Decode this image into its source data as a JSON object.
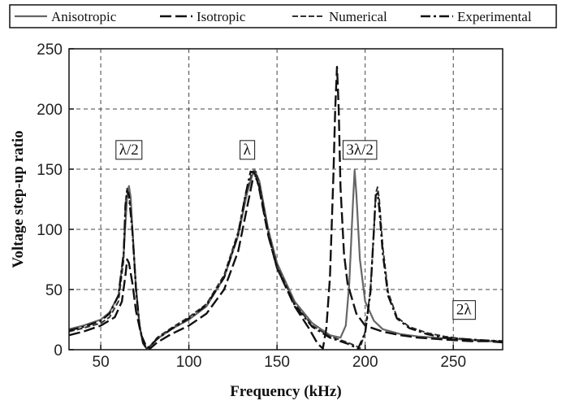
{
  "chart_data": {
    "type": "line",
    "xlabel": "Frequency (kHz)",
    "ylabel": "Voltage step-up ratio",
    "xlim": [
      32,
      278
    ],
    "ylim": [
      0,
      250
    ],
    "xticks": [
      50,
      100,
      150,
      200,
      250
    ],
    "yticks": [
      0,
      50,
      100,
      150,
      200,
      250
    ],
    "grid": true,
    "legend_position": "top",
    "annotations": [
      {
        "text": "λ/2",
        "x": 66,
        "y": 167
      },
      {
        "text": "λ",
        "x": 133,
        "y": 167
      },
      {
        "text": "3λ/2",
        "x": 197,
        "y": 167
      },
      {
        "text": "2λ",
        "x": 256,
        "y": 34
      }
    ],
    "series": [
      {
        "name": "Anisotropic",
        "style": "solid",
        "color": "#666666",
        "points": [
          [
            32,
            17
          ],
          [
            40,
            20
          ],
          [
            50,
            25
          ],
          [
            55,
            31
          ],
          [
            60,
            45
          ],
          [
            63,
            80
          ],
          [
            65,
            128
          ],
          [
            66,
            136
          ],
          [
            67,
            126
          ],
          [
            68,
            100
          ],
          [
            70,
            50
          ],
          [
            72,
            20
          ],
          [
            74,
            5
          ],
          [
            76,
            1
          ],
          [
            78,
            3
          ],
          [
            82,
            9
          ],
          [
            90,
            17
          ],
          [
            100,
            25
          ],
          [
            110,
            36
          ],
          [
            120,
            60
          ],
          [
            128,
            95
          ],
          [
            133,
            130
          ],
          [
            137,
            150
          ],
          [
            140,
            140
          ],
          [
            145,
            100
          ],
          [
            150,
            72
          ],
          [
            160,
            40
          ],
          [
            170,
            22
          ],
          [
            180,
            12
          ],
          [
            186,
            10
          ],
          [
            189,
            20
          ],
          [
            191,
            55
          ],
          [
            193,
            120
          ],
          [
            194,
            149
          ],
          [
            195,
            130
          ],
          [
            197,
            75
          ],
          [
            200,
            40
          ],
          [
            205,
            24
          ],
          [
            210,
            17
          ],
          [
            220,
            13
          ],
          [
            230,
            11
          ],
          [
            240,
            10
          ],
          [
            250,
            9
          ],
          [
            260,
            8
          ],
          [
            270,
            7
          ],
          [
            278,
            7
          ]
        ]
      },
      {
        "name": "Isotropic",
        "style": "longdash",
        "color": "#111111",
        "points": [
          [
            32,
            12
          ],
          [
            40,
            15
          ],
          [
            50,
            20
          ],
          [
            58,
            27
          ],
          [
            62,
            40
          ],
          [
            64,
            62
          ],
          [
            65,
            75
          ],
          [
            66,
            72
          ],
          [
            68,
            55
          ],
          [
            70,
            32
          ],
          [
            73,
            12
          ],
          [
            76,
            2
          ],
          [
            78,
            1
          ],
          [
            82,
            6
          ],
          [
            90,
            13
          ],
          [
            100,
            20
          ],
          [
            110,
            30
          ],
          [
            120,
            50
          ],
          [
            128,
            82
          ],
          [
            133,
            118
          ],
          [
            136,
            140
          ],
          [
            138,
            145
          ],
          [
            140,
            133
          ],
          [
            145,
            95
          ],
          [
            150,
            68
          ],
          [
            160,
            36
          ],
          [
            168,
            18
          ],
          [
            173,
            5
          ],
          [
            176,
            1
          ],
          [
            178,
            18
          ],
          [
            180,
            60
          ],
          [
            182,
            145
          ],
          [
            183,
            200
          ],
          [
            184,
            235
          ],
          [
            185,
            200
          ],
          [
            186,
            135
          ],
          [
            188,
            80
          ],
          [
            190,
            55
          ],
          [
            195,
            30
          ],
          [
            200,
            20
          ],
          [
            210,
            15
          ],
          [
            220,
            12
          ],
          [
            230,
            10
          ],
          [
            240,
            9
          ],
          [
            250,
            8
          ],
          [
            260,
            7
          ],
          [
            270,
            7
          ],
          [
            278,
            6
          ]
        ]
      },
      {
        "name": "Numerical",
        "style": "dash",
        "color": "#333333",
        "points": [
          [
            32,
            15
          ],
          [
            40,
            18
          ],
          [
            50,
            22
          ],
          [
            55,
            27
          ],
          [
            60,
            40
          ],
          [
            63,
            75
          ],
          [
            64,
            122
          ],
          [
            65,
            134
          ],
          [
            66,
            130
          ],
          [
            68,
            100
          ],
          [
            70,
            52
          ],
          [
            72,
            20
          ],
          [
            74,
            5
          ],
          [
            76,
            1
          ],
          [
            78,
            3
          ],
          [
            82,
            10
          ],
          [
            90,
            18
          ],
          [
            100,
            27
          ],
          [
            110,
            38
          ],
          [
            120,
            62
          ],
          [
            128,
            98
          ],
          [
            132,
            128
          ],
          [
            136,
            148
          ],
          [
            138,
            148
          ],
          [
            140,
            138
          ],
          [
            145,
            98
          ],
          [
            150,
            70
          ],
          [
            160,
            38
          ],
          [
            170,
            20
          ],
          [
            180,
            11
          ],
          [
            190,
            6
          ],
          [
            195,
            3
          ],
          [
            197,
            1
          ],
          [
            200,
            15
          ],
          [
            203,
            50
          ],
          [
            205,
            100
          ],
          [
            206,
            130
          ],
          [
            207,
            135
          ],
          [
            208,
            125
          ],
          [
            210,
            85
          ],
          [
            213,
            48
          ],
          [
            218,
            27
          ],
          [
            225,
            19
          ],
          [
            235,
            14
          ],
          [
            245,
            11
          ],
          [
            255,
            9
          ],
          [
            265,
            8
          ],
          [
            278,
            7
          ]
        ]
      },
      {
        "name": "Experimental",
        "style": "dashdot",
        "color": "#111111",
        "points": [
          [
            32,
            16
          ],
          [
            40,
            19
          ],
          [
            50,
            24
          ],
          [
            55,
            30
          ],
          [
            60,
            45
          ],
          [
            63,
            80
          ],
          [
            64,
            120
          ],
          [
            65,
            132
          ],
          [
            66,
            128
          ],
          [
            68,
            98
          ],
          [
            70,
            50
          ],
          [
            72,
            20
          ],
          [
            74,
            6
          ],
          [
            76,
            1
          ],
          [
            78,
            3
          ],
          [
            82,
            9
          ],
          [
            90,
            17
          ],
          [
            100,
            26
          ],
          [
            110,
            37
          ],
          [
            120,
            60
          ],
          [
            128,
            96
          ],
          [
            132,
            128
          ],
          [
            135,
            148
          ],
          [
            137,
            147
          ],
          [
            140,
            135
          ],
          [
            145,
            96
          ],
          [
            150,
            68
          ],
          [
            160,
            37
          ],
          [
            170,
            19
          ],
          [
            180,
            10
          ],
          [
            190,
            5
          ],
          [
            196,
            1
          ],
          [
            200,
            14
          ],
          [
            203,
            48
          ],
          [
            205,
            100
          ],
          [
            206,
            128
          ],
          [
            207,
            130
          ],
          [
            208,
            118
          ],
          [
            210,
            80
          ],
          [
            213,
            45
          ],
          [
            218,
            26
          ],
          [
            225,
            18
          ],
          [
            235,
            13
          ],
          [
            245,
            10
          ],
          [
            255,
            9
          ],
          [
            265,
            8
          ],
          [
            278,
            7
          ]
        ]
      }
    ]
  }
}
